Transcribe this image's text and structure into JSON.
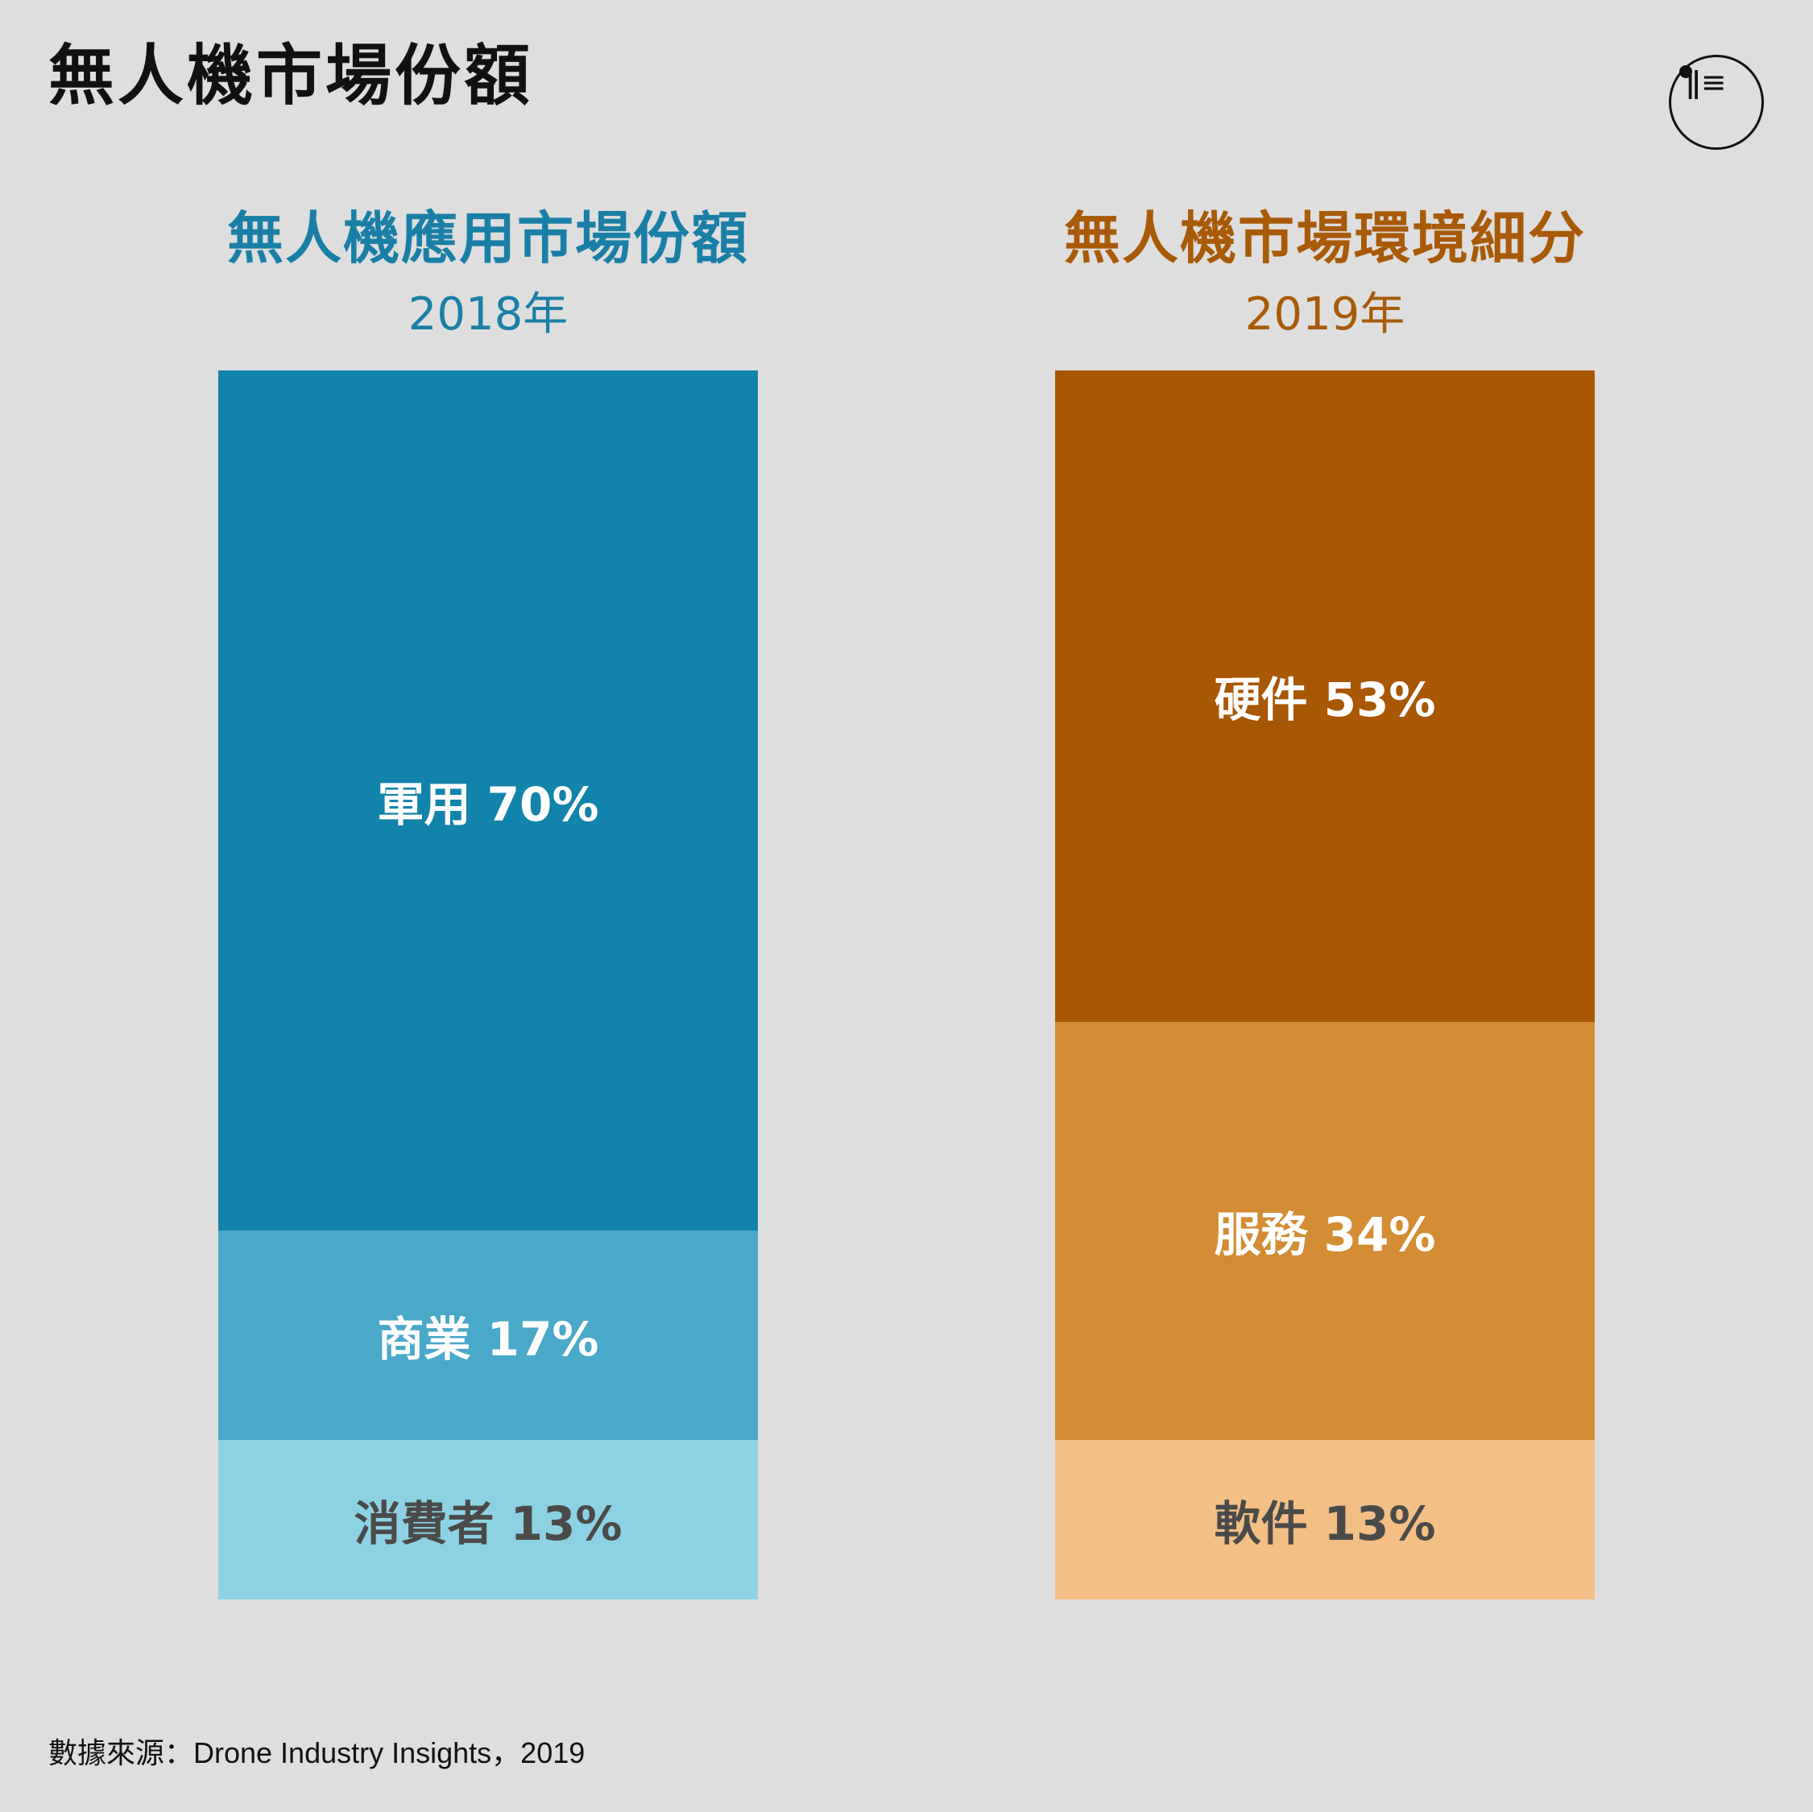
{
  "title": "無人機市場份額",
  "source": "數據來源：Drone Industry Insights，2019",
  "colors": {
    "background": "#dedede",
    "blue_title": "#1a7fa6",
    "orange_title": "#a85a06",
    "label_light": "#ffffff",
    "label_dark": "#4a4a4a"
  },
  "chart_data": [
    {
      "type": "bar",
      "stacked": true,
      "title": "無人機應用市場份額",
      "subtitle": "2018年",
      "unit": "%",
      "segments": [
        {
          "name": "軍用",
          "value": 70,
          "label": "軍用 70%",
          "color": "#1283ab",
          "label_color": "#ffffff"
        },
        {
          "name": "商業",
          "value": 17,
          "label": "商業 17%",
          "color": "#4aa8c9",
          "label_color": "#ffffff"
        },
        {
          "name": "消費者",
          "value": 13,
          "label": "消費者 13%",
          "color": "#8dd2e4",
          "label_color": "#4a4a4a"
        }
      ]
    },
    {
      "type": "bar",
      "stacked": true,
      "title": "無人機市場環境細分",
      "subtitle": "2019年",
      "unit": "%",
      "segments": [
        {
          "name": "硬件",
          "value": 53,
          "label": "硬件 53%",
          "color": "#a85705",
          "label_color": "#ffffff"
        },
        {
          "name": "服務",
          "value": 34,
          "label": "服務 34%",
          "color": "#d28c34",
          "label_color": "#ffffff"
        },
        {
          "name": "軟件",
          "value": 13,
          "label": "軟件 13%",
          "color": "#f3bf84",
          "label_color": "#4a4a4a"
        }
      ]
    }
  ]
}
